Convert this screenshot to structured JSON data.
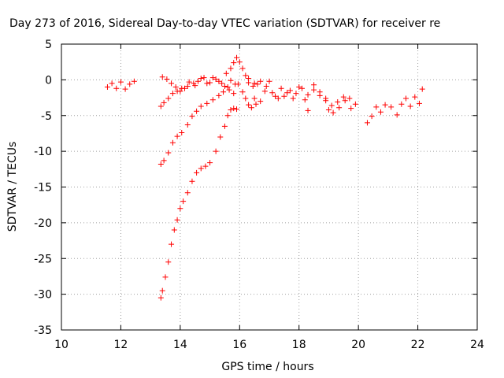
{
  "chart_data": {
    "type": "scatter",
    "title": "Day 273 of 2016, Sidereal Day-to-day VTEC variation (SDTVAR) for receiver re",
    "xlabel": "GPS time / hours",
    "ylabel": "SDTVAR / TECUs",
    "xlim": [
      10,
      24
    ],
    "ylim": [
      -35,
      5
    ],
    "xticks": [
      10,
      12,
      14,
      16,
      18,
      20,
      22,
      24
    ],
    "yticks": [
      5,
      0,
      -5,
      -10,
      -15,
      -20,
      -25,
      -30,
      -35
    ],
    "grid": true,
    "marker": "+",
    "color": "#ff0000",
    "series": [
      {
        "x": [
          11.55,
          11.7,
          11.85,
          12.0,
          12.15,
          12.3,
          12.45
        ],
        "y": [
          -1.0,
          -0.5,
          -1.2,
          -0.3,
          -1.3,
          -0.6,
          -0.2
        ]
      },
      {
        "x": [
          13.35,
          13.45,
          13.6,
          13.75,
          13.9,
          14.05,
          14.25,
          14.4,
          14.55,
          14.7,
          14.9,
          15.1,
          15.3,
          15.45,
          15.6,
          15.7,
          15.85
        ],
        "y": [
          -11.8,
          -11.3,
          -10.2,
          -8.8,
          -7.9,
          -7.4,
          -6.3,
          -5.1,
          -4.4,
          -3.7,
          -3.3,
          -2.8,
          -2.2,
          -1.7,
          -1.0,
          -0.1,
          -0.6
        ]
      },
      {
        "x": [
          13.35,
          13.4,
          13.5,
          13.6,
          13.7,
          13.8,
          13.9,
          14.0,
          14.1,
          14.25,
          14.4,
          14.55,
          14.7,
          14.85,
          15.0,
          15.2,
          15.35,
          15.5,
          15.6,
          15.7,
          15.8,
          15.9
        ],
        "y": [
          -30.5,
          -29.5,
          -27.6,
          -25.5,
          -23.0,
          -21.0,
          -19.6,
          -18.0,
          -17.0,
          -15.8,
          -14.2,
          -13.0,
          -12.4,
          -12.1,
          -11.6,
          -10.0,
          -8.0,
          -6.5,
          -5.0,
          -4.2,
          -4.0,
          -4.1
        ]
      },
      {
        "x": [
          13.35,
          13.45,
          13.6,
          13.75,
          13.9,
          14.05,
          14.25,
          14.45,
          14.6,
          14.8,
          15.0,
          15.2,
          15.4,
          15.55,
          15.7,
          15.8,
          15.9,
          16.0,
          16.1,
          16.2,
          16.3,
          16.45,
          16.6
        ],
        "y": [
          -3.7,
          -3.2,
          -2.6,
          -1.9,
          -1.6,
          -1.2,
          -0.9,
          -0.5,
          -0.2,
          0.3,
          -0.4,
          0.1,
          -0.5,
          0.9,
          1.6,
          2.4,
          3.1,
          2.5,
          1.6,
          0.6,
          -0.4,
          -0.9,
          -0.6
        ]
      },
      {
        "x": [
          13.4,
          13.55,
          13.7,
          13.85,
          14.0,
          14.15,
          14.3,
          14.5,
          14.7,
          14.9,
          15.1,
          15.3,
          15.5,
          15.65,
          15.8,
          15.95,
          16.1,
          16.2,
          16.3,
          16.4,
          16.55
        ],
        "y": [
          0.4,
          0.1,
          -0.5,
          -1.0,
          -1.6,
          -1.2,
          -0.3,
          -0.8,
          0.2,
          -0.5,
          0.3,
          -0.2,
          -0.9,
          -1.4,
          -1.9,
          -0.6,
          -1.7,
          -2.6,
          -3.5,
          -3.9,
          -3.4
        ]
      },
      {
        "x": [
          16.3,
          16.5,
          16.7,
          16.9,
          17.1,
          17.3,
          17.5,
          17.7,
          17.9,
          18.1,
          18.3,
          18.5,
          18.7,
          18.9,
          19.1,
          19.3,
          19.5,
          19.7,
          19.9
        ],
        "y": [
          0.2,
          -0.5,
          -0.2,
          -0.9,
          -1.8,
          -2.6,
          -2.3,
          -1.5,
          -1.9,
          -1.2,
          -2.1,
          -1.4,
          -2.2,
          -2.9,
          -3.6,
          -3.1,
          -2.4,
          -2.6,
          -3.4
        ]
      },
      {
        "x": [
          16.5,
          16.7,
          16.85,
          17.0,
          17.2,
          17.4,
          17.6,
          17.8,
          18.0,
          18.2,
          18.3,
          18.5,
          18.7,
          18.9,
          19.0,
          19.15,
          19.35,
          19.55,
          19.75
        ],
        "y": [
          -2.6,
          -3.0,
          -1.6,
          -0.2,
          -2.3,
          -1.2,
          -1.8,
          -2.6,
          -1.0,
          -2.8,
          -4.3,
          -0.7,
          -1.7,
          -2.6,
          -4.2,
          -4.6,
          -3.9,
          -2.9,
          -4.0
        ]
      },
      {
        "x": [
          20.3,
          20.45,
          20.6,
          20.75,
          20.9,
          21.1,
          21.3,
          21.45,
          21.6,
          21.75,
          21.9,
          22.05,
          22.15
        ],
        "y": [
          -6.0,
          -5.1,
          -3.8,
          -4.5,
          -3.5,
          -3.8,
          -4.9,
          -3.4,
          -2.6,
          -3.7,
          -2.4,
          -3.3,
          -1.3
        ]
      }
    ]
  }
}
